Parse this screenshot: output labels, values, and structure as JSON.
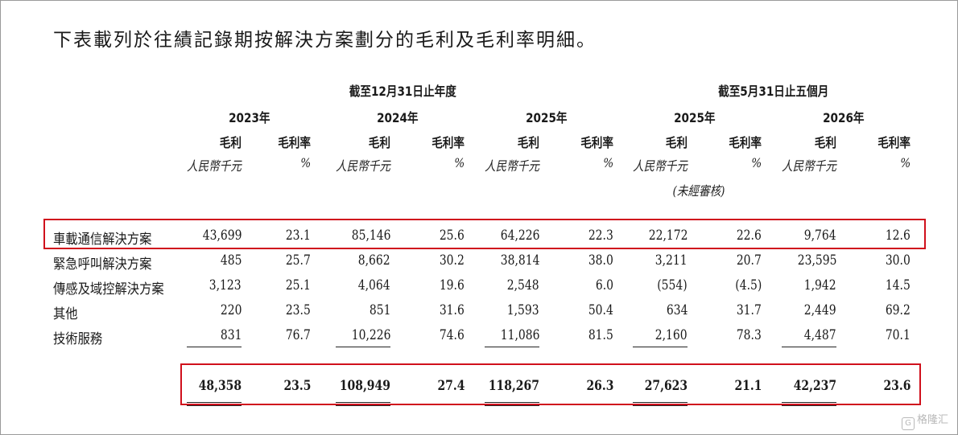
{
  "intro": "下表載列於往績記錄期按解決方案劃分的毛利及毛利率明細。",
  "header": {
    "group_annual": "截至12月31日止年度",
    "group_interim": "截至5月31日止五個月",
    "years": [
      "2023年",
      "2024年",
      "2025年",
      "2025年",
      "2026年"
    ],
    "col_gross_profit": "毛利",
    "col_margin": "毛利率",
    "unit_rmb": "人民幣千元",
    "unit_pct": "%",
    "unaudited": "(未經審核)"
  },
  "rows": [
    {
      "label": "車載通信解決方案",
      "values": [
        "43,699",
        "23.1",
        "85,146",
        "25.6",
        "64,226",
        "22.3",
        "22,172",
        "22.6",
        "9,764",
        "12.6"
      ]
    },
    {
      "label": "緊急呼叫解決方案",
      "values": [
        "485",
        "25.7",
        "8,662",
        "30.2",
        "38,814",
        "38.0",
        "3,211",
        "20.7",
        "23,595",
        "30.0"
      ]
    },
    {
      "label": "傳感及域控解決方案",
      "values": [
        "3,123",
        "25.1",
        "4,064",
        "19.6",
        "2,548",
        "6.0",
        "(554)",
        "(4.5)",
        "1,942",
        "14.5"
      ]
    },
    {
      "label": "其他",
      "values": [
        "220",
        "23.5",
        "851",
        "31.6",
        "1,593",
        "50.4",
        "634",
        "31.7",
        "2,449",
        "69.2"
      ]
    },
    {
      "label": "技術服務",
      "values": [
        "831",
        "76.7",
        "10,226",
        "74.6",
        "11,086",
        "81.5",
        "2,160",
        "78.3",
        "4,487",
        "70.1"
      ]
    }
  ],
  "total": {
    "values": [
      "48,358",
      "23.5",
      "108,949",
      "27.4",
      "118,267",
      "26.3",
      "27,623",
      "21.1",
      "42,237",
      "23.6"
    ]
  },
  "watermark": {
    "icon_text": "G",
    "text": "格隆汇"
  },
  "colors": {
    "highlight": "#d0101c",
    "text": "#1a1a1a"
  }
}
